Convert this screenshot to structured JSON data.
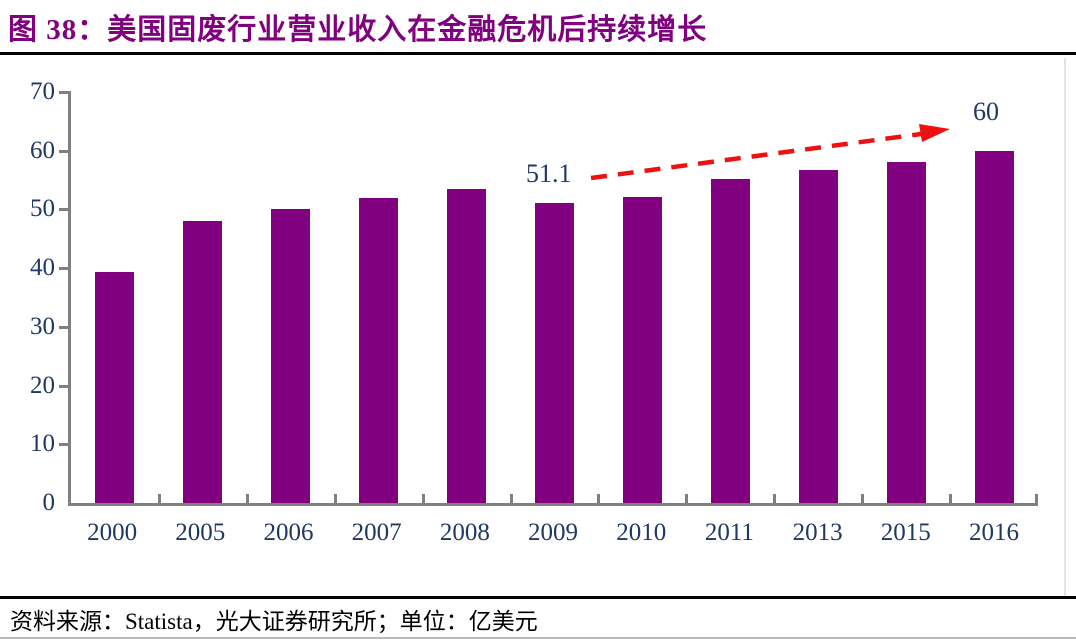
{
  "figure": {
    "title_prefix": "图 38：",
    "title_text": "美国固废行业营业收入在金融危机后持续增长",
    "source_note": "资料来源：Statista，光大证券研究所；单位：亿美元"
  },
  "chart_data": {
    "type": "bar",
    "categories": [
      "2000",
      "2005",
      "2006",
      "2007",
      "2008",
      "2009",
      "2010",
      "2011",
      "2013",
      "2015",
      "2016"
    ],
    "values": [
      39.4,
      48.0,
      50.0,
      52.0,
      53.5,
      51.1,
      52.2,
      55.2,
      56.8,
      58.0,
      60.0
    ],
    "title": "",
    "xlabel": "",
    "ylabel": "",
    "ylim": [
      0,
      70
    ],
    "yticks": [
      0,
      10,
      20,
      30,
      40,
      50,
      60,
      70
    ],
    "grid": false,
    "legend": "none",
    "bar_color": "#800080",
    "annotations": [
      {
        "text": "51.1",
        "target_category": "2009"
      },
      {
        "text": "60",
        "target_category": "2016"
      }
    ],
    "trend_arrow": {
      "style": "dashed",
      "color": "#ee1111",
      "from_category": "2009",
      "to_category": "2016",
      "direction": "up-right"
    }
  },
  "colors": {
    "title_purple": "#800080",
    "bar_purple": "#800080",
    "axis_gray": "#808080",
    "label_navy": "#1f3864",
    "arrow_red": "#ee1111",
    "rule_black": "#000000"
  }
}
